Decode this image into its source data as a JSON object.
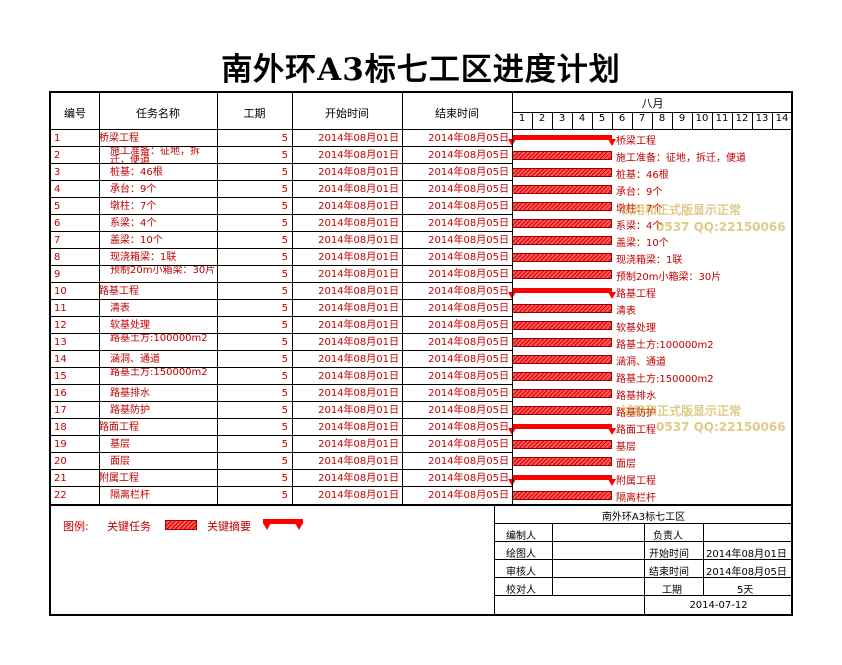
{
  "title": "南外环A3标七工区进度计划",
  "header": {
    "col_no": "编号",
    "col_name": "任务名称",
    "col_duration": "工期",
    "col_start": "开始时间",
    "col_end": "结束时间",
    "month": "八月",
    "days": [
      "1",
      "2",
      "3",
      "4",
      "5",
      "6",
      "7",
      "8",
      "9",
      "10",
      "11",
      "12",
      "13",
      "14"
    ]
  },
  "tasks": [
    {
      "no": "1",
      "name": "桥梁工程",
      "duration": "5",
      "start": "2014年08月01日",
      "end": "2014年08月05日",
      "summary": true,
      "indent": false
    },
    {
      "no": "2",
      "name": "施工准备：征地，拆迁，便道",
      "duration": "5",
      "start": "2014年08月01日",
      "end": "2014年08月05日",
      "summary": false,
      "indent": true
    },
    {
      "no": "3",
      "name": "桩基：46根",
      "duration": "5",
      "start": "2014年08月01日",
      "end": "2014年08月05日",
      "summary": false,
      "indent": true
    },
    {
      "no": "4",
      "name": "承台：9个",
      "duration": "5",
      "start": "2014年08月01日",
      "end": "2014年08月05日",
      "summary": false,
      "indent": true
    },
    {
      "no": "5",
      "name": "墩柱：7个",
      "duration": "5",
      "start": "2014年08月01日",
      "end": "2014年08月05日",
      "summary": false,
      "indent": true
    },
    {
      "no": "6",
      "name": "系梁：4个",
      "duration": "5",
      "start": "2014年08月01日",
      "end": "2014年08月05日",
      "summary": false,
      "indent": true
    },
    {
      "no": "7",
      "name": "盖梁：10个",
      "duration": "5",
      "start": "2014年08月01日",
      "end": "2014年08月05日",
      "summary": false,
      "indent": true
    },
    {
      "no": "8",
      "name": "现浇箱梁：1联",
      "duration": "5",
      "start": "2014年08月01日",
      "end": "2014年08月05日",
      "summary": false,
      "indent": true
    },
    {
      "no": "9",
      "name": "预制20m小箱梁：30片",
      "duration": "5",
      "start": "2014年08月01日",
      "end": "2014年08月05日",
      "summary": false,
      "indent": true
    },
    {
      "no": "10",
      "name": "路基工程",
      "duration": "5",
      "start": "2014年08月01日",
      "end": "2014年08月05日",
      "summary": true,
      "indent": false
    },
    {
      "no": "11",
      "name": "清表",
      "duration": "5",
      "start": "2014年08月01日",
      "end": "2014年08月05日",
      "summary": false,
      "indent": true
    },
    {
      "no": "12",
      "name": "软基处理",
      "duration": "5",
      "start": "2014年08月01日",
      "end": "2014年08月05日",
      "summary": false,
      "indent": true
    },
    {
      "no": "13",
      "name": "路基土方:100000m2",
      "duration": "5",
      "start": "2014年08月01日",
      "end": "2014年08月05日",
      "summary": false,
      "indent": true
    },
    {
      "no": "14",
      "name": "涵洞、通道",
      "duration": "5",
      "start": "2014年08月01日",
      "end": "2014年08月05日",
      "summary": false,
      "indent": true
    },
    {
      "no": "15",
      "name": "路基土方:150000m2",
      "duration": "5",
      "start": "2014年08月01日",
      "end": "2014年08月05日",
      "summary": false,
      "indent": true
    },
    {
      "no": "16",
      "name": "路基排水",
      "duration": "5",
      "start": "2014年08月01日",
      "end": "2014年08月05日",
      "summary": false,
      "indent": true
    },
    {
      "no": "17",
      "name": "路基防护",
      "duration": "5",
      "start": "2014年08月01日",
      "end": "2014年08月05日",
      "summary": false,
      "indent": true
    },
    {
      "no": "18",
      "name": "路面工程",
      "duration": "5",
      "start": "2014年08月01日",
      "end": "2014年08月05日",
      "summary": true,
      "indent": false
    },
    {
      "no": "19",
      "name": "基层",
      "duration": "5",
      "start": "2014年08月01日",
      "end": "2014年08月05日",
      "summary": false,
      "indent": true
    },
    {
      "no": "20",
      "name": "面层",
      "duration": "5",
      "start": "2014年08月01日",
      "end": "2014年08月05日",
      "summary": false,
      "indent": true
    },
    {
      "no": "21",
      "name": "附属工程",
      "duration": "5",
      "start": "2014年08月01日",
      "end": "2014年08月05日",
      "summary": true,
      "indent": false
    },
    {
      "no": "22",
      "name": "隔离栏杆",
      "duration": "5",
      "start": "2014年08月01日",
      "end": "2014年08月05日",
      "summary": false,
      "indent": true
    }
  ],
  "bar_labels": [
    "桥梁工程",
    "施工准备：征地，拆迁，便道",
    "桩基：46根",
    "承台：9个",
    "墩柱：7个",
    "系梁：4个",
    "盖梁：10个",
    "现浇箱梁：1联",
    "预制20m小箱梁：30片",
    "路基工程",
    "清表",
    "软基处理",
    "路基土方:100000m2",
    "涵洞、通道",
    "路基土方:150000m2",
    "路基排水",
    "路基防护",
    "路面工程",
    "基层",
    "面层",
    "附属工程",
    "隔离栏杆"
  ],
  "bar_span": {
    "start_day": 1,
    "end_day": 5
  },
  "legend": {
    "label": "图例:",
    "critical_task": "关键任务",
    "critical_summary": "关键摘要"
  },
  "info": {
    "project": "南外环A3标七工区",
    "compiler_label": "编制人",
    "compiler": "",
    "drawer_label": "绘图人",
    "drawer": "",
    "reviewer_label": "审核人",
    "reviewer": "",
    "checker_label": "校对人",
    "checker": "",
    "owner_label": "负责人",
    "owner": "",
    "start_label": "开始时间",
    "start": "2014年08月01日",
    "end_label": "结束时间",
    "end": "2014年08月05日",
    "duration_label": "工期",
    "duration": "5天",
    "date": "2014-07-12"
  },
  "watermarks": [
    {
      "text": "试用和正式版显示正常"
    },
    {
      "text": "0537 QQ:22150066"
    },
    {
      "text": "试用和正式版显示正常"
    },
    {
      "text": "0537 QQ:22150066"
    }
  ],
  "colors": {
    "accent": "#ff0000",
    "text_red": "#c00000",
    "watermark": "#c4a028"
  }
}
